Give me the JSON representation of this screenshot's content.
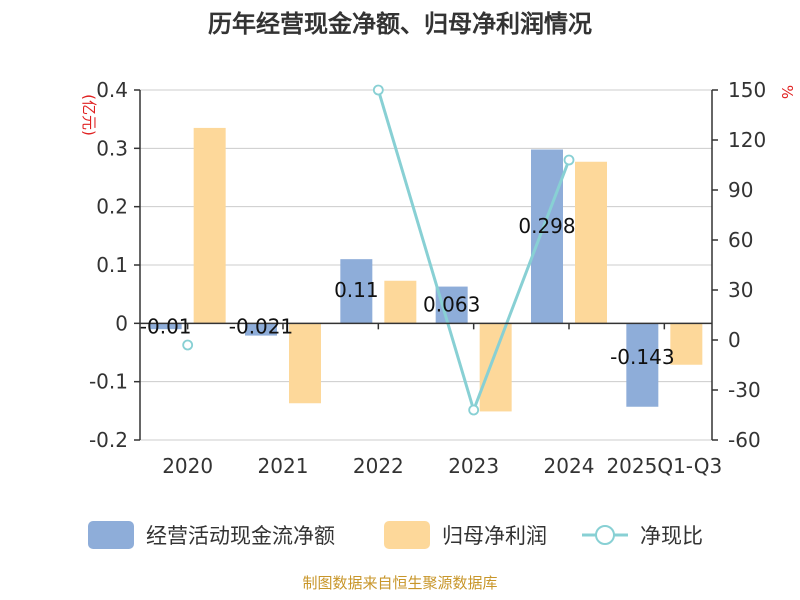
{
  "title": "历年经营现金净额、归母净利润情况",
  "source": "制图数据来自恒生聚源数据库",
  "chart_data": {
    "type": "bar",
    "categories": [
      "2020",
      "2021",
      "2022",
      "2023",
      "2024",
      "2025Q1-Q3"
    ],
    "series": [
      {
        "name": "经营活动现金流净额",
        "kind": "bar",
        "axis": "left",
        "color": "#8eadd9",
        "values": [
          -0.01,
          -0.021,
          0.11,
          0.063,
          0.298,
          -0.143
        ],
        "labels": [
          "-0.01",
          "-0.021",
          "0.11",
          "0.063",
          "0.298",
          "-0.143"
        ]
      },
      {
        "name": "归母净利润",
        "kind": "bar",
        "axis": "left",
        "color": "#fdd89a",
        "values": [
          0.335,
          -0.137,
          0.073,
          -0.151,
          0.277,
          -0.071
        ]
      },
      {
        "name": "净现比",
        "kind": "line",
        "axis": "right",
        "color": "#88d0d4",
        "values": [
          -3,
          null,
          150,
          -42,
          108,
          null
        ]
      }
    ],
    "y_left": {
      "unit": "(亿元)",
      "min": -0.2,
      "max": 0.4,
      "ticks": [
        "-0.2",
        "-0.1",
        "0",
        "0.1",
        "0.2",
        "0.3",
        "0.4"
      ]
    },
    "y_right": {
      "unit": "%",
      "min": -60,
      "max": 150,
      "ticks": [
        "-60",
        "-30",
        "0",
        "30",
        "60",
        "90",
        "120",
        "150"
      ]
    },
    "grid": true,
    "legend_position": "bottom"
  }
}
